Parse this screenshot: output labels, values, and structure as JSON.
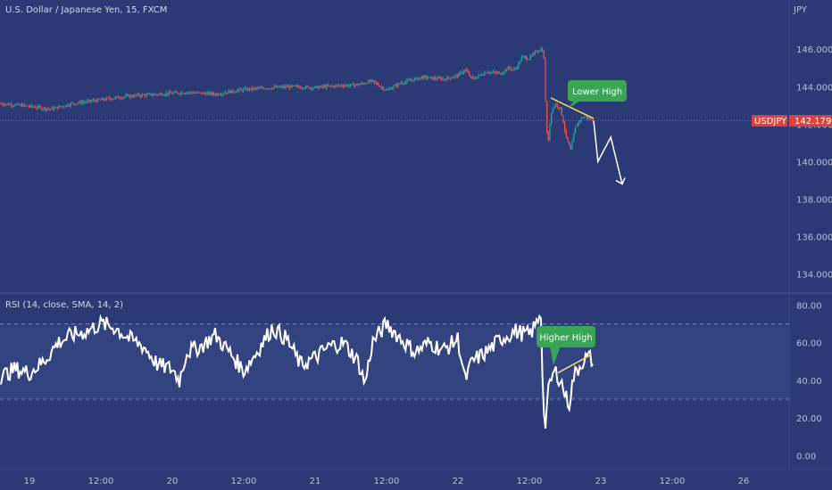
{
  "header": {
    "symbol_title": "U.S. Dollar / Japanese Yen, 15, FXCM",
    "currency": "JPY"
  },
  "colors": {
    "background": "#2b3a74",
    "up": "#26a69a",
    "down": "#ef5350",
    "accent": "#ffe066",
    "bubble": "#3aa655",
    "rsi_band": "#33437f",
    "price_badge": "#e0403b"
  },
  "price_badge": {
    "symbol": "USDJPY",
    "value": "142.179"
  },
  "annotations": {
    "price_bubble": "Lower High",
    "rsi_bubble": "Higher High"
  },
  "chart_data": [
    {
      "type": "candlestick",
      "title": "U.S. Dollar / Japanese Yen, 15, FXCM",
      "ylabel": "JPY",
      "ylim": [
        133.5,
        147.2
      ],
      "yticks": [
        146,
        144,
        142,
        140,
        138,
        136,
        134
      ],
      "ytick_labels": [
        "146.000",
        "144.000",
        "142.000",
        "140.000",
        "138.000",
        "136.000",
        "134.000"
      ],
      "xticks": [
        {
          "label": "19",
          "t": 0
        },
        {
          "label": "12:00",
          "t": 0.5
        },
        {
          "label": "20",
          "t": 1
        },
        {
          "label": "12:00",
          "t": 1.5
        },
        {
          "label": "21",
          "t": 2
        },
        {
          "label": "12:00",
          "t": 2.5
        },
        {
          "label": "22",
          "t": 3
        },
        {
          "label": "12:00",
          "t": 3.5
        },
        {
          "label": "23",
          "t": 4
        },
        {
          "label": "12:00",
          "t": 4.5
        },
        {
          "label": "26",
          "t": 5
        }
      ],
      "last_price": 142.179,
      "close_path": [
        [
          -0.2,
          143.1
        ],
        [
          0.0,
          142.95
        ],
        [
          0.15,
          142.8
        ],
        [
          0.3,
          143.1
        ],
        [
          0.5,
          143.3
        ],
        [
          0.7,
          143.5
        ],
        [
          0.9,
          143.6
        ],
        [
          1.1,
          143.7
        ],
        [
          1.3,
          143.6
        ],
        [
          1.5,
          143.85
        ],
        [
          1.7,
          143.95
        ],
        [
          1.85,
          144.0
        ],
        [
          2.0,
          143.95
        ],
        [
          2.15,
          144.05
        ],
        [
          2.3,
          144.1
        ],
        [
          2.4,
          144.3
        ],
        [
          2.5,
          143.8
        ],
        [
          2.6,
          144.2
        ],
        [
          2.75,
          144.5
        ],
        [
          2.9,
          144.4
        ],
        [
          3.0,
          144.6
        ],
        [
          3.05,
          144.9
        ],
        [
          3.1,
          144.4
        ],
        [
          3.2,
          144.8
        ],
        [
          3.3,
          144.7
        ],
        [
          3.35,
          145.0
        ],
        [
          3.4,
          144.9
        ],
        [
          3.45,
          145.6
        ],
        [
          3.5,
          145.5
        ],
        [
          3.55,
          145.9
        ],
        [
          3.58,
          146.0
        ],
        [
          3.6,
          145.9
        ],
        [
          3.62,
          141.7
        ],
        [
          3.63,
          140.9
        ],
        [
          3.65,
          142.6
        ],
        [
          3.68,
          143.1
        ],
        [
          3.72,
          142.8
        ],
        [
          3.76,
          141.2
        ],
        [
          3.79,
          140.6
        ],
        [
          3.82,
          141.8
        ],
        [
          3.85,
          142.2
        ],
        [
          3.88,
          142.4
        ],
        [
          3.92,
          142.3
        ],
        [
          3.95,
          142.18
        ]
      ],
      "projection": [
        [
          3.95,
          142.18
        ],
        [
          3.98,
          140.0
        ],
        [
          4.07,
          141.3
        ],
        [
          4.15,
          138.8
        ]
      ],
      "trendline": [
        [
          3.65,
          143.4
        ],
        [
          3.95,
          142.3
        ]
      ],
      "annotation": "Lower High"
    },
    {
      "type": "line",
      "title": "RSI (14, close, SMA, 14, 2)",
      "ylim": [
        -5,
        83
      ],
      "yticks": [
        80,
        60,
        40,
        20,
        0
      ],
      "ytick_labels": [
        "80.00",
        "60.00",
        "40.00",
        "20.00",
        "0.00"
      ],
      "bands": [
        30,
        70
      ],
      "series": [
        {
          "values": [
            [
              -0.2,
              42
            ],
            [
              -0.1,
              46
            ],
            [
              0.0,
              44
            ],
            [
              0.1,
              50
            ],
            [
              0.2,
              60
            ],
            [
              0.3,
              64
            ],
            [
              0.4,
              66
            ],
            [
              0.5,
              70
            ],
            [
              0.6,
              68
            ],
            [
              0.7,
              62
            ],
            [
              0.8,
              58
            ],
            [
              0.9,
              48
            ],
            [
              1.0,
              46
            ],
            [
              1.05,
              40
            ],
            [
              1.1,
              55
            ],
            [
              1.2,
              58
            ],
            [
              1.3,
              64
            ],
            [
              1.4,
              55
            ],
            [
              1.5,
              45
            ],
            [
              1.6,
              56
            ],
            [
              1.7,
              68
            ],
            [
              1.8,
              62
            ],
            [
              1.9,
              48
            ],
            [
              2.0,
              52
            ],
            [
              2.1,
              58
            ],
            [
              2.2,
              60
            ],
            [
              2.3,
              50
            ],
            [
              2.35,
              38
            ],
            [
              2.4,
              60
            ],
            [
              2.5,
              70
            ],
            [
              2.6,
              62
            ],
            [
              2.7,
              55
            ],
            [
              2.8,
              60
            ],
            [
              2.9,
              56
            ],
            [
              3.0,
              62
            ],
            [
              3.05,
              40
            ],
            [
              3.1,
              50
            ],
            [
              3.2,
              55
            ],
            [
              3.3,
              62
            ],
            [
              3.4,
              66
            ],
            [
              3.5,
              64
            ],
            [
              3.55,
              70
            ],
            [
              3.58,
              78
            ],
            [
              3.6,
              22
            ],
            [
              3.61,
              15
            ],
            [
              3.63,
              32
            ],
            [
              3.65,
              40
            ],
            [
              3.68,
              45
            ],
            [
              3.72,
              40
            ],
            [
              3.76,
              30
            ],
            [
              3.78,
              28
            ],
            [
              3.81,
              42
            ],
            [
              3.84,
              46
            ],
            [
              3.87,
              50
            ],
            [
              3.9,
              52
            ],
            [
              3.93,
              52
            ],
            [
              3.95,
              48
            ]
          ]
        }
      ],
      "trendline": [
        [
          3.7,
          44
        ],
        [
          3.93,
          53.5
        ]
      ],
      "annotation": "Higher High"
    }
  ]
}
